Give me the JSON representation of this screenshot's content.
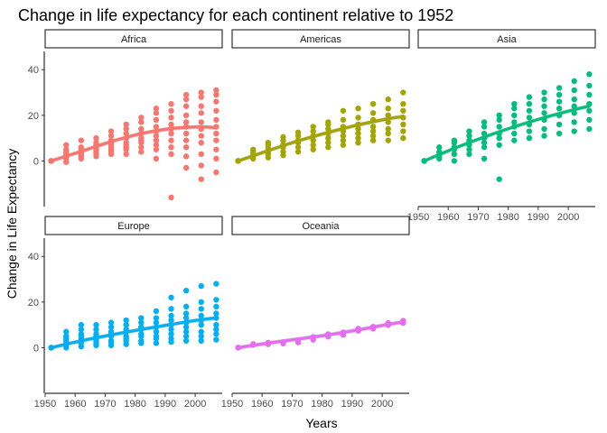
{
  "chart_data": {
    "type": "scatter",
    "title": "Change in life expectancy for each continent relative to 1952",
    "xlabel": "Years",
    "ylabel": "Change in Life Expectancy",
    "xlim": [
      1950,
      2009
    ],
    "ylim": [
      -20,
      48
    ],
    "x_ticks": [
      1950,
      1960,
      1970,
      1980,
      1990,
      2000
    ],
    "y_ticks": [
      0,
      20,
      40
    ],
    "x_tick_labels": [
      "1950",
      "1960",
      "1970",
      "1980",
      "1990",
      "2000"
    ],
    "y_tick_labels": [
      "0",
      "20",
      "40"
    ],
    "grid": false,
    "smoother": "loess trend with confidence band",
    "facets": [
      {
        "name": "Africa",
        "color": "#F8766D",
        "points": [
          {
            "year": 1952,
            "values": [
              0,
              0,
              0,
              0,
              0
            ]
          },
          {
            "year": 1957,
            "values": [
              -0.5,
              1,
              2,
              2.5,
              3,
              4,
              5,
              7
            ]
          },
          {
            "year": 1962,
            "values": [
              1,
              2,
              3,
              4,
              5,
              6,
              9
            ]
          },
          {
            "year": 1967,
            "values": [
              2,
              3,
              4,
              5,
              6,
              7,
              8,
              10
            ]
          },
          {
            "year": 1972,
            "values": [
              3,
              4,
              5,
              6,
              7,
              8,
              9,
              11,
              13
            ]
          },
          {
            "year": 1977,
            "values": [
              3,
              5,
              6,
              7,
              8,
              10,
              12,
              14,
              16
            ]
          },
          {
            "year": 1982,
            "values": [
              4,
              6,
              8,
              9,
              10,
              12,
              14,
              17,
              19
            ]
          },
          {
            "year": 1987,
            "values": [
              1,
              5,
              7,
              9,
              11,
              13,
              15,
              18,
              21,
              23
            ]
          },
          {
            "year": 1992,
            "values": [
              -16,
              3,
              6,
              9,
              12,
              14,
              16,
              19,
              22,
              25
            ]
          },
          {
            "year": 1997,
            "values": [
              -3,
              2,
              6,
              9,
              12,
              15,
              17,
              20,
              24,
              27,
              29
            ]
          },
          {
            "year": 2002,
            "values": [
              -8,
              -2,
              3,
              8,
              11,
              14,
              17,
              21,
              24,
              28,
              30
            ]
          },
          {
            "year": 2007,
            "values": [
              -5,
              1,
              5,
              9,
              12,
              15,
              18,
              22,
              26,
              29,
              31
            ]
          }
        ],
        "trend": [
          [
            1952,
            0
          ],
          [
            1962,
            4.2
          ],
          [
            1972,
            8.5
          ],
          [
            1982,
            12
          ],
          [
            1992,
            14.2
          ],
          [
            2002,
            15
          ],
          [
            2007,
            14.5
          ]
        ]
      },
      {
        "name": "Americas",
        "color": "#A3A500",
        "points": [
          {
            "year": 1952,
            "values": [
              0,
              0,
              0,
              0
            ]
          },
          {
            "year": 1957,
            "values": [
              1,
              2,
              3,
              4,
              5
            ]
          },
          {
            "year": 1962,
            "values": [
              1.5,
              3,
              4,
              5.5,
              7,
              8
            ]
          },
          {
            "year": 1967,
            "values": [
              2.5,
              4,
              6,
              7,
              9,
              10.5
            ]
          },
          {
            "year": 1972,
            "values": [
              4,
              6,
              8,
              9,
              11,
              12.5
            ]
          },
          {
            "year": 1977,
            "values": [
              5,
              7,
              9,
              11,
              13,
              15
            ]
          },
          {
            "year": 1982,
            "values": [
              6,
              8,
              10,
              12,
              14,
              16,
              17
            ]
          },
          {
            "year": 1987,
            "values": [
              7,
              9,
              11,
              13,
              15,
              18,
              22
            ]
          },
          {
            "year": 1992,
            "values": [
              8,
              10,
              12,
              14,
              16,
              19,
              23
            ]
          },
          {
            "year": 1997,
            "values": [
              9,
              11,
              13,
              15,
              18,
              21,
              25
            ]
          },
          {
            "year": 2002,
            "values": [
              9,
              12,
              14,
              17,
              20,
              23,
              27
            ]
          },
          {
            "year": 2007,
            "values": [
              10,
              13,
              16,
              19,
              22,
              25,
              30
            ]
          }
        ],
        "trend": [
          [
            1952,
            0
          ],
          [
            1962,
            4.5
          ],
          [
            1972,
            8.8
          ],
          [
            1982,
            12.5
          ],
          [
            1992,
            15.8
          ],
          [
            2002,
            18.5
          ],
          [
            2007,
            19.5
          ]
        ]
      },
      {
        "name": "Asia",
        "color": "#00BF7D",
        "points": [
          {
            "year": 1952,
            "values": [
              0,
              0,
              0,
              0
            ]
          },
          {
            "year": 1957,
            "values": [
              1,
              2,
              3,
              4,
              6
            ]
          },
          {
            "year": 1962,
            "values": [
              0,
              3,
              5,
              6,
              8,
              9
            ]
          },
          {
            "year": 1967,
            "values": [
              3,
              5,
              7,
              9,
              11,
              13
            ]
          },
          {
            "year": 1972,
            "values": [
              1,
              6,
              8,
              10,
              12,
              15,
              17
            ]
          },
          {
            "year": 1977,
            "values": [
              -8,
              7,
              10,
              12,
              15,
              18,
              20
            ]
          },
          {
            "year": 1982,
            "values": [
              9,
              12,
              15,
              17,
              20,
              23,
              25
            ]
          },
          {
            "year": 1987,
            "values": [
              10,
              13,
              16,
              19,
              22,
              25,
              28
            ]
          },
          {
            "year": 1992,
            "values": [
              11,
              14,
              18,
              21,
              24,
              27,
              30
            ]
          },
          {
            "year": 1997,
            "values": [
              12,
              16,
              20,
              23,
              26,
              29,
              32
            ]
          },
          {
            "year": 2002,
            "values": [
              13,
              17,
              21,
              24,
              27,
              31,
              35
            ]
          },
          {
            "year": 2007,
            "values": [
              14,
              18,
              22,
              25,
              29,
              33,
              38
            ]
          }
        ],
        "trend": [
          [
            1952,
            0
          ],
          [
            1962,
            5.5
          ],
          [
            1972,
            10.5
          ],
          [
            1982,
            15
          ],
          [
            1992,
            19
          ],
          [
            2002,
            22.5
          ],
          [
            2007,
            24
          ]
        ]
      },
      {
        "name": "Europe",
        "color": "#00B0F6",
        "points": [
          {
            "year": 1952,
            "values": [
              0,
              0,
              0,
              0
            ]
          },
          {
            "year": 1957,
            "values": [
              0,
              1,
              2,
              3,
              4,
              5,
              7
            ]
          },
          {
            "year": 1962,
            "values": [
              0.5,
              2,
              3,
              4,
              5,
              6,
              8,
              10
            ]
          },
          {
            "year": 1967,
            "values": [
              1,
              2,
              3,
              4,
              5,
              6,
              8,
              10
            ]
          },
          {
            "year": 1972,
            "values": [
              1,
              2,
              3,
              5,
              6,
              7,
              9,
              11
            ]
          },
          {
            "year": 1977,
            "values": [
              1.5,
              3,
              4,
              5,
              7,
              8,
              10,
              12
            ]
          },
          {
            "year": 1982,
            "values": [
              2,
              3,
              5,
              6,
              8,
              9,
              11,
              13
            ]
          },
          {
            "year": 1987,
            "values": [
              2,
              4,
              5,
              7,
              9,
              11,
              13,
              16
            ]
          },
          {
            "year": 1992,
            "values": [
              2.5,
              4,
              6,
              8,
              10,
              12,
              14,
              17,
              22
            ]
          },
          {
            "year": 1997,
            "values": [
              3,
              5,
              7,
              9,
              11,
              13,
              15,
              18,
              25
            ]
          },
          {
            "year": 2002,
            "values": [
              3,
              5,
              7,
              10,
              12,
              14,
              17,
              20,
              27
            ]
          },
          {
            "year": 2007,
            "values": [
              3.5,
              6,
              8,
              10,
              13,
              15,
              18,
              21,
              28
            ]
          }
        ],
        "trend": [
          [
            1952,
            0
          ],
          [
            1962,
            3
          ],
          [
            1972,
            5.6
          ],
          [
            1982,
            8
          ],
          [
            1992,
            10.2
          ],
          [
            2002,
            12.3
          ],
          [
            2007,
            13
          ]
        ]
      },
      {
        "name": "Oceania",
        "color": "#E76BF3",
        "points": [
          {
            "year": 1952,
            "values": [
              0,
              0
            ]
          },
          {
            "year": 1957,
            "values": [
              1.2,
              1.6
            ]
          },
          {
            "year": 1962,
            "values": [
              1.5,
              2.2
            ]
          },
          {
            "year": 1967,
            "values": [
              1.8,
              2.4
            ]
          },
          {
            "year": 1972,
            "values": [
              2.3,
              3.2
            ]
          },
          {
            "year": 1977,
            "values": [
              3.5,
              4.7
            ]
          },
          {
            "year": 1982,
            "values": [
              4.8,
              5.9
            ]
          },
          {
            "year": 1987,
            "values": [
              5.6,
              6.7
            ]
          },
          {
            "year": 1992,
            "values": [
              7.4,
              8.3
            ]
          },
          {
            "year": 1997,
            "values": [
              8.3,
              9.2
            ]
          },
          {
            "year": 2002,
            "values": [
              9.9,
              10.8
            ]
          },
          {
            "year": 2007,
            "values": [
              10.8,
              11.8
            ]
          }
        ],
        "trend": [
          [
            1952,
            0
          ],
          [
            1962,
            2
          ],
          [
            1972,
            3.8
          ],
          [
            1982,
            5.6
          ],
          [
            1992,
            7.8
          ],
          [
            2002,
            10.2
          ],
          [
            2007,
            11.3
          ]
        ]
      }
    ]
  }
}
